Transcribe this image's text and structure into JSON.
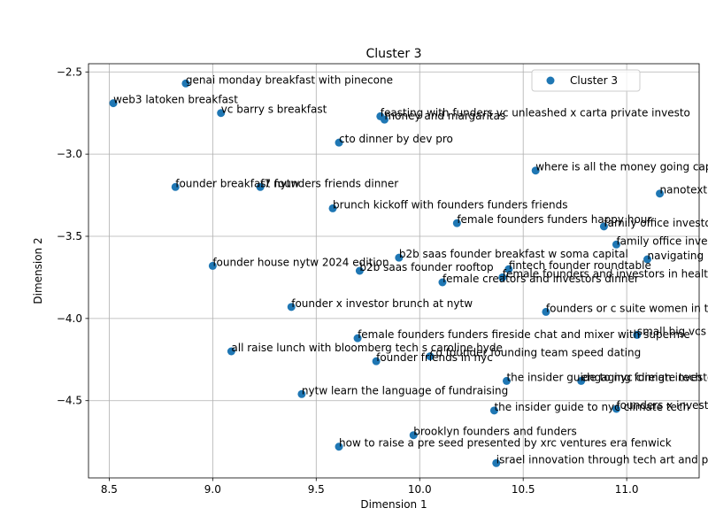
{
  "chart_data": {
    "type": "scatter",
    "title": "Cluster 3",
    "xlabel": "Dimension 1",
    "ylabel": "Dimension 2",
    "xlim": [
      8.4,
      11.35
    ],
    "ylim": [
      -4.97,
      -2.45
    ],
    "xticks": [
      8.5,
      9.0,
      9.5,
      10.0,
      10.5,
      11.0
    ],
    "xtick_labels": [
      "8.5",
      "9.0",
      "9.5",
      "10.0",
      "10.5",
      "11.0"
    ],
    "yticks": [
      -2.5,
      -3.0,
      -3.5,
      -4.0,
      -4.5
    ],
    "ytick_labels": [
      "−2.5",
      "−3.0",
      "−3.5",
      "−4.0",
      "−4.5"
    ],
    "grid": true,
    "legend_position": "top-right",
    "series": [
      {
        "name": "Cluster 3",
        "color": "#1f77b4",
        "points": [
          {
            "x": 8.87,
            "y": -2.57,
            "label": "genai monday breakfast with pinecone"
          },
          {
            "x": 8.52,
            "y": -2.69,
            "label": "web3 latoken breakfast"
          },
          {
            "x": 9.04,
            "y": -2.75,
            "label": "vc barry s breakfast"
          },
          {
            "x": 9.81,
            "y": -2.77,
            "label": "feasting with funders vc unleashed x carta private investo"
          },
          {
            "x": 9.83,
            "y": -2.79,
            "label": "money and margaritas"
          },
          {
            "x": 9.61,
            "y": -2.93,
            "label": "cto dinner by dev pro"
          },
          {
            "x": 10.56,
            "y": -3.1,
            "label": "where is all the money going capita"
          },
          {
            "x": 8.82,
            "y": -3.2,
            "label": "founder breakfast nytw"
          },
          {
            "x": 9.23,
            "y": -3.2,
            "label": "f7 founders friends dinner"
          },
          {
            "x": 11.16,
            "y": -3.24,
            "label": "nanotextiles at"
          },
          {
            "x": 9.58,
            "y": -3.33,
            "label": "brunch kickoff with founders funders friends"
          },
          {
            "x": 10.18,
            "y": -3.42,
            "label": "female founders funders happy hour"
          },
          {
            "x": 10.89,
            "y": -3.44,
            "label": "family office investors s"
          },
          {
            "x": 10.95,
            "y": -3.55,
            "label": "family office investors"
          },
          {
            "x": 11.1,
            "y": -3.64,
            "label": "navigating large in"
          },
          {
            "x": 9.9,
            "y": -3.63,
            "label": "b2b saas founder breakfast w soma capital"
          },
          {
            "x": 9.0,
            "y": -3.68,
            "label": "founder house nytw 2024 edition"
          },
          {
            "x": 10.43,
            "y": -3.7,
            "label": "fintech founder roundtable"
          },
          {
            "x": 9.71,
            "y": -3.71,
            "label": "b2b saas founder rooftop"
          },
          {
            "x": 10.4,
            "y": -3.75,
            "label": "female founders and investors in healt"
          },
          {
            "x": 10.11,
            "y": -3.78,
            "label": "female creators and investors dinner"
          },
          {
            "x": 10.61,
            "y": -3.96,
            "label": "founders or c suite women in tec"
          },
          {
            "x": 9.38,
            "y": -3.93,
            "label": "founder x investor brunch at nytw"
          },
          {
            "x": 11.05,
            "y": -4.1,
            "label": "small big vcs in ba"
          },
          {
            "x": 9.7,
            "y": -4.12,
            "label": "female founders funders fireside chat and mixer with superme"
          },
          {
            "x": 9.09,
            "y": -4.2,
            "label": "all raise lunch with bloomberg tech s caroline hyde"
          },
          {
            "x": 10.05,
            "y": -4.23,
            "label": "co founder founding team speed dating"
          },
          {
            "x": 9.79,
            "y": -4.26,
            "label": "founder friends in nyc"
          },
          {
            "x": 10.42,
            "y": -4.38,
            "label": "the insider guide to nyc climate tech"
          },
          {
            "x": 10.78,
            "y": -4.38,
            "label": "engaging foreign investors"
          },
          {
            "x": 9.43,
            "y": -4.46,
            "label": "nytw learn the language of fundraising"
          },
          {
            "x": 10.36,
            "y": -4.56,
            "label": "the insider guide to nyc climate tech"
          },
          {
            "x": 10.95,
            "y": -4.55,
            "label": "founders x investors"
          },
          {
            "x": 9.97,
            "y": -4.71,
            "label": "brooklyn founders and funders"
          },
          {
            "x": 9.61,
            "y": -4.78,
            "label": "how to raise a pre seed presented by xrc ventures era fenwick"
          },
          {
            "x": 10.37,
            "y": -4.88,
            "label": "israel innovation through tech art and p"
          }
        ]
      }
    ]
  }
}
